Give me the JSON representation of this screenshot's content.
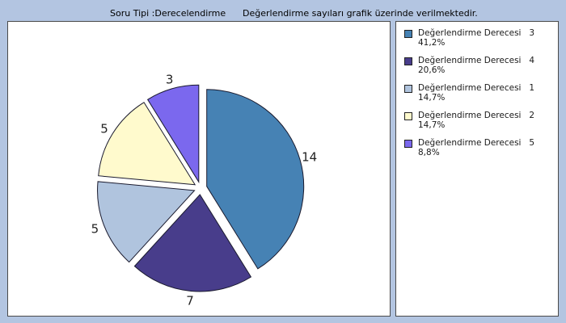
{
  "header": {
    "question_type": "Soru Tipi :Derecelendirme",
    "note": "Değerlendirme sayıları grafik üzerinde verilmektedir."
  },
  "chart_data": {
    "type": "pie",
    "slices": [
      {
        "label": "Değerlendirme Derecesi",
        "code": "3",
        "value": 14,
        "percent": "41,2%",
        "color": "#4682b4"
      },
      {
        "label": "Değerlendirme Derecesi",
        "code": "4",
        "value": 7,
        "percent": "20,6%",
        "color": "#483d8b"
      },
      {
        "label": "Değerlendirme Derecesi",
        "code": "1",
        "value": 5,
        "percent": "14,7%",
        "color": "#b0c4de"
      },
      {
        "label": "Değerlendirme Derecesi",
        "code": "2",
        "value": 5,
        "percent": "14,7%",
        "color": "#fffacd"
      },
      {
        "label": "Değerlendirme Derecesi",
        "code": "5",
        "value": 3,
        "percent": "8,8%",
        "color": "#7b68ee"
      }
    ]
  }
}
